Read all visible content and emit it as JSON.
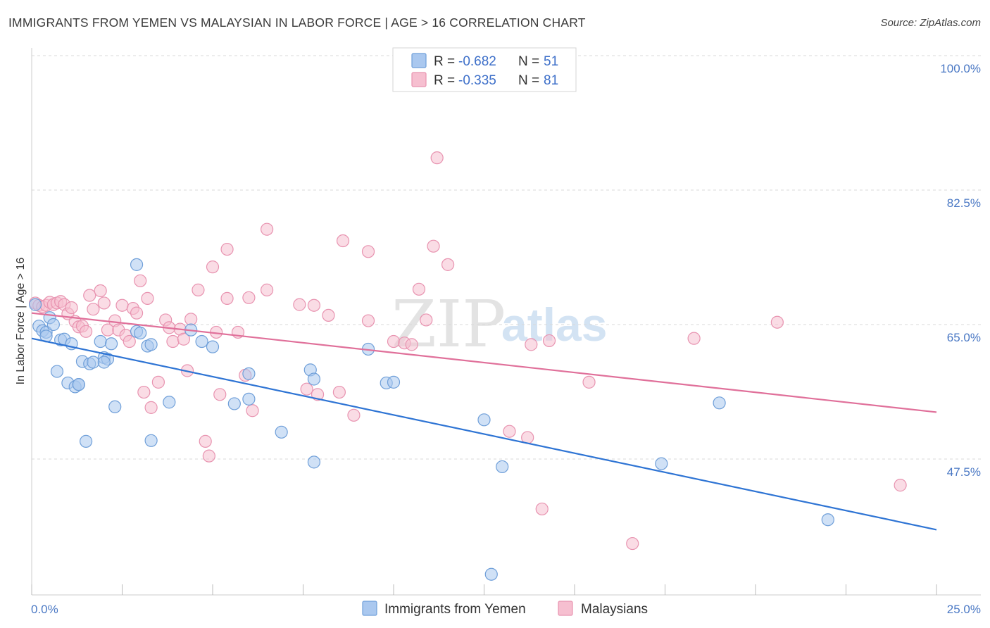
{
  "title": "IMMIGRANTS FROM YEMEN VS MALAYSIAN IN LABOR FORCE | AGE > 16 CORRELATION CHART",
  "source": "Source: ZipAtlas.com",
  "watermark": {
    "zip": "ZIP",
    "atlas": "atlas"
  },
  "legend": {
    "r_label": "R =",
    "n_label": "N =",
    "entries": [
      {
        "r": "-0.682",
        "n": "51"
      },
      {
        "r": "-0.335",
        "n": "81"
      }
    ]
  },
  "colors": {
    "blue_fill": "#aac8ef",
    "blue_stroke": "#6f9fd9",
    "blue_line": "#2e74d4",
    "pink_fill": "#f6bfd0",
    "pink_stroke": "#e893b0",
    "pink_line": "#e0709a",
    "grid": "#d8d8d8",
    "tick_text": "#4a78c4"
  },
  "chart_data": {
    "type": "scatter",
    "xlabel": "",
    "ylabel": "In Labor Force | Age > 16",
    "xlim": [
      0,
      25
    ],
    "ylim": [
      32,
      100
    ],
    "x_tick_labels": [
      "0.0%",
      "25.0%"
    ],
    "y_ticks": [
      47.5,
      65.0,
      82.5,
      100.0
    ],
    "y_tick_labels": [
      "47.5%",
      "65.0%",
      "82.5%",
      "100.0%"
    ],
    "grid": true,
    "legend_position": "top-center",
    "series": [
      {
        "name": "Immigrants from Yemen",
        "color": "blue",
        "trend": {
          "x": [
            0,
            25
          ],
          "y": [
            63.2,
            38.3
          ]
        },
        "points": [
          [
            0.1,
            67.6
          ],
          [
            0.2,
            64.8
          ],
          [
            0.3,
            64.2
          ],
          [
            0.4,
            64.0
          ],
          [
            0.4,
            63.5
          ],
          [
            0.5,
            65.9
          ],
          [
            0.6,
            65.0
          ],
          [
            0.7,
            58.9
          ],
          [
            0.8,
            63.0
          ],
          [
            0.9,
            63.1
          ],
          [
            1.0,
            57.4
          ],
          [
            1.1,
            62.5
          ],
          [
            1.2,
            56.9
          ],
          [
            1.3,
            57.2
          ],
          [
            1.4,
            60.2
          ],
          [
            1.5,
            49.8
          ],
          [
            1.6,
            59.9
          ],
          [
            1.7,
            60.1
          ],
          [
            1.9,
            62.8
          ],
          [
            2.0,
            60.7
          ],
          [
            2.1,
            60.5
          ],
          [
            2.2,
            62.5
          ],
          [
            2.3,
            54.3
          ],
          [
            2.9,
            72.8
          ],
          [
            2.9,
            64.1
          ],
          [
            3.0,
            63.9
          ],
          [
            3.2,
            62.2
          ],
          [
            3.3,
            62.4
          ],
          [
            3.3,
            49.9
          ],
          [
            3.8,
            54.9
          ],
          [
            4.4,
            64.3
          ],
          [
            4.7,
            62.8
          ],
          [
            5.0,
            62.1
          ],
          [
            5.6,
            54.7
          ],
          [
            6.0,
            55.3
          ],
          [
            6.0,
            58.6
          ],
          [
            6.9,
            51.0
          ],
          [
            7.7,
            59.1
          ],
          [
            7.8,
            57.9
          ],
          [
            7.8,
            47.1
          ],
          [
            9.3,
            61.8
          ],
          [
            9.8,
            57.4
          ],
          [
            10.0,
            57.5
          ],
          [
            12.5,
            52.6
          ],
          [
            12.7,
            32.5
          ],
          [
            13.0,
            46.5
          ],
          [
            17.4,
            46.9
          ],
          [
            19.0,
            54.8
          ],
          [
            22.0,
            39.6
          ],
          [
            1.3,
            57.2
          ],
          [
            2.0,
            60.1
          ]
        ]
      },
      {
        "name": "Malaysians",
        "color": "pink",
        "trend": {
          "x": [
            0,
            25
          ],
          "y": [
            66.5,
            53.6
          ]
        },
        "points": [
          [
            0.1,
            67.8
          ],
          [
            0.2,
            67.5
          ],
          [
            0.3,
            67.3
          ],
          [
            0.4,
            67.5
          ],
          [
            0.5,
            67.9
          ],
          [
            0.6,
            67.6
          ],
          [
            0.7,
            67.8
          ],
          [
            0.8,
            68.0
          ],
          [
            0.9,
            67.6
          ],
          [
            1.0,
            66.4
          ],
          [
            1.1,
            67.2
          ],
          [
            1.2,
            65.4
          ],
          [
            1.3,
            64.7
          ],
          [
            1.4,
            64.8
          ],
          [
            1.5,
            64.1
          ],
          [
            1.6,
            68.8
          ],
          [
            1.7,
            67.0
          ],
          [
            1.9,
            69.4
          ],
          [
            2.0,
            67.8
          ],
          [
            2.1,
            64.3
          ],
          [
            2.3,
            65.5
          ],
          [
            2.4,
            64.3
          ],
          [
            2.5,
            67.5
          ],
          [
            2.6,
            63.6
          ],
          [
            2.7,
            62.8
          ],
          [
            2.8,
            67.1
          ],
          [
            2.9,
            66.5
          ],
          [
            3.0,
            70.7
          ],
          [
            3.1,
            56.2
          ],
          [
            3.2,
            68.4
          ],
          [
            3.3,
            54.2
          ],
          [
            3.5,
            57.5
          ],
          [
            3.7,
            65.6
          ],
          [
            3.8,
            64.6
          ],
          [
            3.9,
            62.8
          ],
          [
            4.1,
            64.4
          ],
          [
            4.2,
            63.1
          ],
          [
            4.3,
            59.0
          ],
          [
            4.4,
            65.7
          ],
          [
            4.6,
            69.5
          ],
          [
            4.8,
            49.8
          ],
          [
            4.9,
            47.9
          ],
          [
            5.0,
            72.5
          ],
          [
            5.1,
            64.0
          ],
          [
            5.2,
            55.9
          ],
          [
            5.4,
            68.4
          ],
          [
            5.4,
            74.8
          ],
          [
            5.7,
            64.0
          ],
          [
            5.9,
            58.4
          ],
          [
            6.0,
            68.5
          ],
          [
            6.1,
            53.8
          ],
          [
            6.5,
            77.4
          ],
          [
            6.5,
            69.5
          ],
          [
            7.4,
            67.6
          ],
          [
            7.6,
            56.6
          ],
          [
            7.8,
            67.5
          ],
          [
            7.9,
            55.9
          ],
          [
            8.2,
            66.2
          ],
          [
            8.5,
            56.2
          ],
          [
            8.6,
            75.9
          ],
          [
            8.9,
            53.2
          ],
          [
            9.3,
            65.5
          ],
          [
            9.3,
            74.5
          ],
          [
            10.0,
            62.8
          ],
          [
            10.3,
            62.6
          ],
          [
            10.5,
            62.4
          ],
          [
            10.7,
            69.6
          ],
          [
            10.9,
            65.6
          ],
          [
            11.1,
            75.2
          ],
          [
            11.2,
            86.7
          ],
          [
            11.5,
            72.8
          ],
          [
            13.2,
            51.1
          ],
          [
            13.7,
            50.3
          ],
          [
            13.8,
            62.4
          ],
          [
            14.1,
            41.0
          ],
          [
            14.3,
            62.9
          ],
          [
            15.4,
            57.5
          ],
          [
            16.6,
            36.5
          ],
          [
            18.3,
            63.2
          ],
          [
            20.6,
            65.3
          ],
          [
            24.0,
            44.1
          ]
        ]
      }
    ]
  }
}
